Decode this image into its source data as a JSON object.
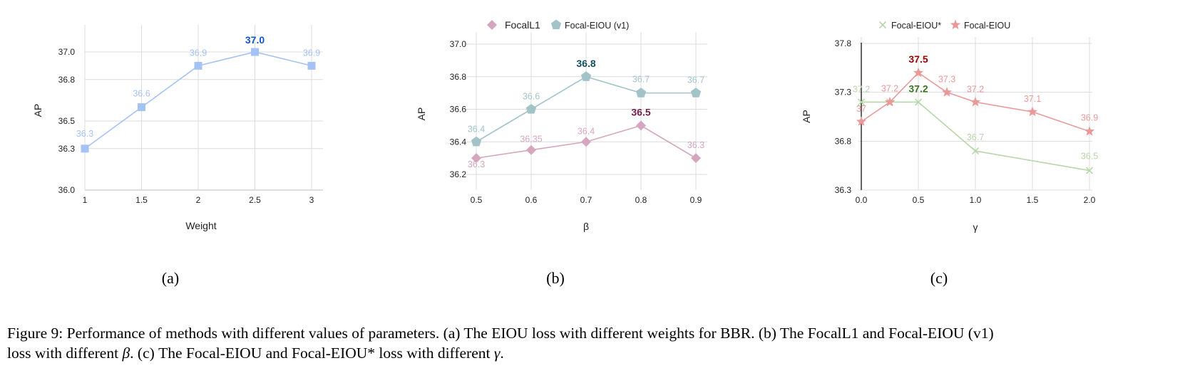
{
  "chart_data": [
    {
      "id": "a",
      "type": "line",
      "xlabel": "Weight",
      "ylabel": "AP",
      "ylim": [
        36.0,
        37.2
      ],
      "yticks": [
        36.0,
        36.3,
        36.5,
        36.8,
        37.0
      ],
      "x_tick_labels": [
        "1",
        "1.5",
        "2",
        "2.5",
        "3"
      ],
      "grid": true,
      "legend": "none",
      "series": [
        {
          "marker": "square",
          "color": "#a4c2f4",
          "x": [
            1,
            1.5,
            2,
            2.5,
            3
          ],
          "values": [
            36.3,
            36.6,
            36.9,
            37.0,
            36.9
          ],
          "labels": [
            "36.3",
            "36.6",
            "36.9",
            "37.0",
            "36.9"
          ],
          "highlight_index": 3,
          "highlight_color": "#1155cc"
        }
      ]
    },
    {
      "id": "b",
      "type": "line",
      "xlabel": "β",
      "ylabel": "AP",
      "ylim": [
        36.1,
        37.0
      ],
      "yticks": [
        36.2,
        36.4,
        36.6,
        36.8,
        37.0
      ],
      "x_tick_labels": [
        "0.5",
        "0.6",
        "0.7",
        "0.8",
        "0.9"
      ],
      "grid": true,
      "legend": "top",
      "series": [
        {
          "name": "FocalL1",
          "marker": "diamond",
          "color": "#d5a6bd",
          "x": [
            0.5,
            0.6,
            0.7,
            0.8,
            0.9
          ],
          "values": [
            36.3,
            36.35,
            36.4,
            36.5,
            36.3
          ],
          "labels": [
            "36.3",
            "36.35",
            "36.4",
            "36.5",
            "36.3"
          ],
          "highlight_index": 3,
          "highlight_color": "#741b47"
        },
        {
          "name": "Focal-EIOU (v1)",
          "marker": "pentagon",
          "color": "#a2c4c9",
          "x": [
            0.5,
            0.6,
            0.7,
            0.8,
            0.9
          ],
          "values": [
            36.4,
            36.6,
            36.8,
            36.7,
            36.7
          ],
          "labels": [
            "36.4",
            "36.6",
            "36.8",
            "36.7",
            "36.7"
          ],
          "highlight_index": 2,
          "highlight_color": "#134f5c"
        }
      ]
    },
    {
      "id": "c",
      "type": "line",
      "xlabel": "γ",
      "ylabel": "AP",
      "ylim": [
        36.3,
        37.8
      ],
      "yticks": [
        36.3,
        36.8,
        37.3,
        37.8
      ],
      "x_tick_labels": [
        "0.0",
        "0.5",
        "1.0",
        "1.5",
        "2.0"
      ],
      "grid": true,
      "legend": "top",
      "series": [
        {
          "name": "Focal-EIOU*",
          "marker": "x",
          "color": "#b6d7a8",
          "x": [
            0,
            0.25,
            0.5,
            1.0,
            2.0
          ],
          "values": [
            37.2,
            37.2,
            37.2,
            36.7,
            36.5
          ],
          "labels": [
            "37.2",
            "",
            "37.2",
            "36.7",
            "36.5"
          ],
          "highlight_index": 2,
          "highlight_color": "#38761d"
        },
        {
          "name": "Focal-EIOU",
          "marker": "star",
          "color": "#ea9999",
          "x": [
            0,
            0.25,
            0.5,
            0.75,
            1.0,
            1.5,
            2.0
          ],
          "values": [
            37.0,
            37.2,
            37.5,
            37.3,
            37.2,
            37.1,
            36.9
          ],
          "labels": [
            "37",
            "37.2",
            "37.5",
            "37.3",
            "37.2",
            "37.1",
            "36.9"
          ],
          "highlight_index": 2,
          "highlight_color": "#990000"
        }
      ]
    }
  ],
  "subfigures": [
    "(a)",
    "(b)",
    "(c)"
  ],
  "caption": {
    "line1": "Figure 9: Performance of methods with different values of parameters. (a) The EIOU loss with different weights for BBR. (b) The FocalL1 and Focal-EIOU (v1)",
    "line2_a": "loss with different ",
    "beta": "β",
    "line2_b": ". (c) The Focal-EIOU and Focal-EIOU* loss with different ",
    "gamma": "γ",
    "line2_c": "."
  }
}
